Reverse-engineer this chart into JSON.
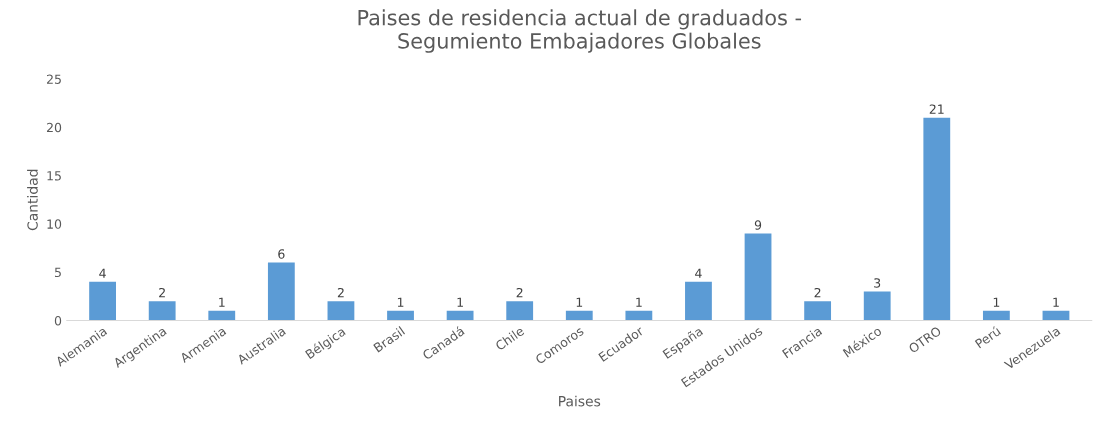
{
  "chart_data": {
    "type": "bar",
    "title": "Paises de residencia actual de graduados -\nSegumiento Embajadores Globales",
    "xlabel": "Paises",
    "ylabel": "Cantidad",
    "categories": [
      "Alemania",
      "Argentina",
      "Armenia",
      "Australia",
      "Bélgica",
      "Brasil",
      "Canadá",
      "Chile",
      "Comoros",
      "Ecuador",
      "España",
      "Estados Unidos",
      "Francia",
      "México",
      "OTRO",
      "Perú",
      "Venezuela"
    ],
    "values": [
      4,
      2,
      1,
      6,
      2,
      1,
      1,
      2,
      1,
      1,
      4,
      9,
      2,
      3,
      21,
      1,
      1
    ],
    "color": "#5b9bd5",
    "ylim": [
      0,
      25
    ],
    "yticks": [
      0,
      5,
      10,
      15,
      20,
      25
    ],
    "grid": false,
    "data_labels": true
  }
}
